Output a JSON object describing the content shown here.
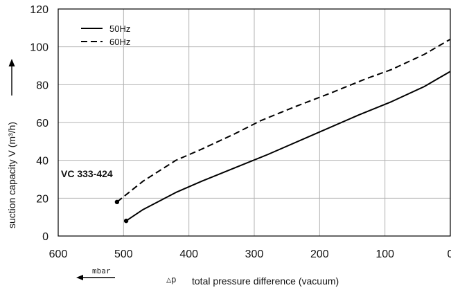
{
  "chart_data": {
    "type": "line",
    "ylabel": "suction capacity V (m³/h)",
    "xlabel": "total pressure difference (vacuum)",
    "xlabel_symbol": "△p",
    "x_unit": "mbar",
    "xlim": [
      600,
      0
    ],
    "ylim": [
      0,
      120
    ],
    "x_ticks": [
      600,
      500,
      400,
      300,
      200,
      100,
      0
    ],
    "y_ticks": [
      0,
      20,
      40,
      60,
      80,
      100,
      120
    ],
    "grid": true,
    "legend_position": "top-left",
    "annotation": "VC 333-424",
    "series": [
      {
        "name": "50Hz",
        "line_style": "solid",
        "x": [
          496,
          470,
          420,
          380,
          330,
          280,
          200,
          140,
          90,
          40,
          0
        ],
        "y": [
          8,
          14,
          23,
          29,
          36,
          43,
          55,
          64,
          71,
          79,
          87
        ]
      },
      {
        "name": "60Hz",
        "line_style": "dashed",
        "x": [
          510,
          470,
          420,
          380,
          330,
          290,
          240,
          180,
          130,
          90,
          40,
          0
        ],
        "y": [
          18,
          29,
          40,
          46,
          54,
          61,
          68,
          76,
          83,
          88,
          96,
          104
        ]
      }
    ]
  }
}
